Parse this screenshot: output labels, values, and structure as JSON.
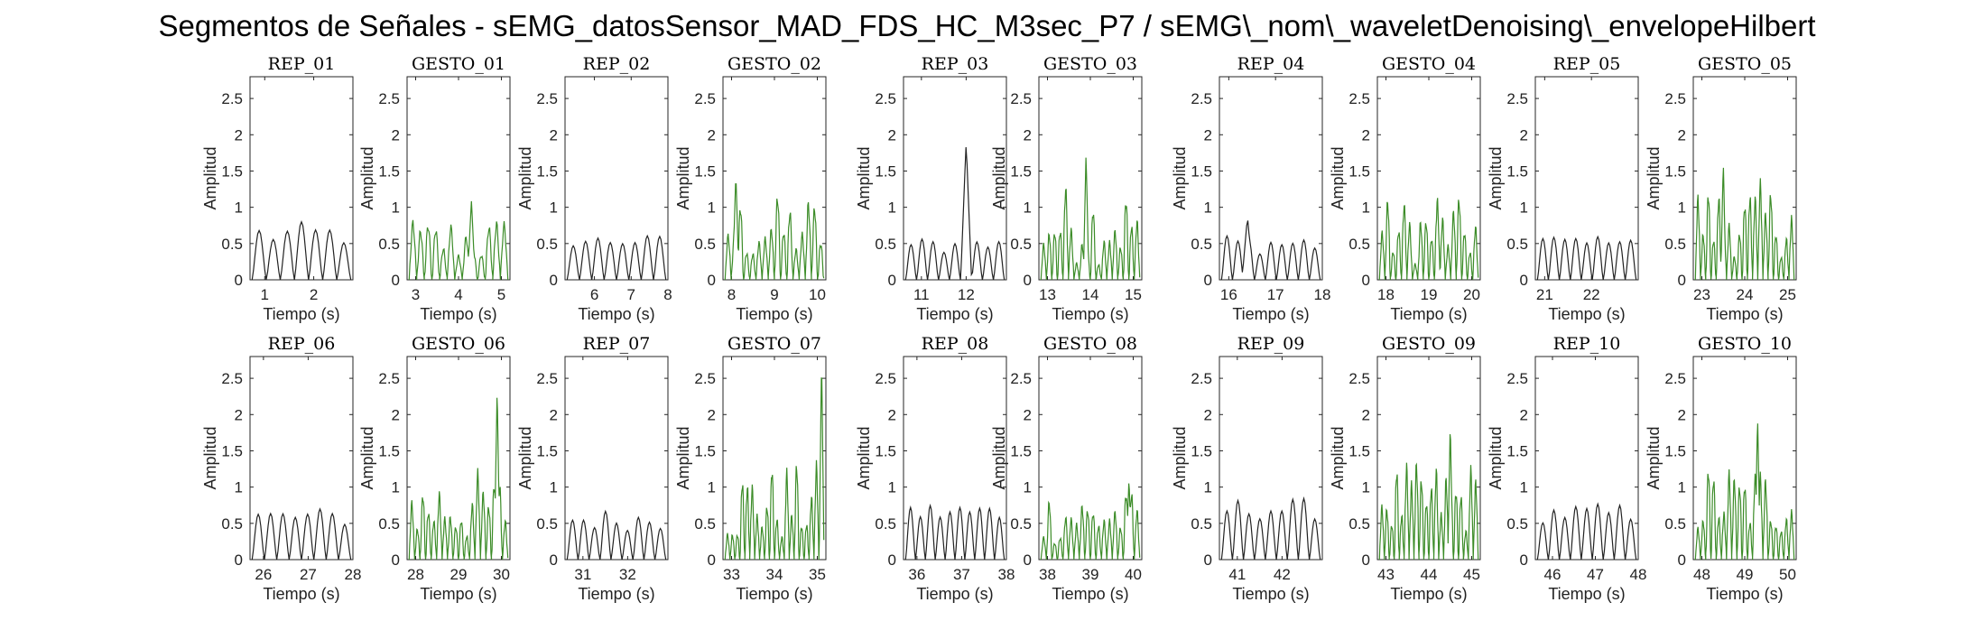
{
  "figure_title": "Segmentos de Señales - sEMG_datosSensor_MAD_FDS_HC_M3sec_P7 / sEMG\\_nom\\_waveletDenoising\\_envelopeHilbert",
  "colors": {
    "rep": "#222222",
    "gesto": "#3c8c28",
    "axes": "#262626"
  },
  "chart_data": {
    "type": "line",
    "layout": {
      "rows": 2,
      "cols": 10
    },
    "ylim": [
      0,
      2.8
    ],
    "yticks": [
      0,
      0.5,
      1,
      1.5,
      2,
      2.5
    ],
    "xlabel": "Tiempo (s)",
    "ylabel": "Amplitud",
    "panels": [
      {
        "title": "REP_01",
        "kind": "rep",
        "xlim": [
          0.7,
          2.8
        ],
        "xticks": [
          1,
          2
        ],
        "bumps": 7,
        "amp": [
          0.45,
          0.8
        ],
        "peak": null
      },
      {
        "title": "GESTO_01",
        "kind": "gesto",
        "xlim": [
          2.8,
          5.2
        ],
        "xticks": [
          3,
          4,
          5
        ],
        "bumps": 13,
        "amp": [
          0.2,
          0.85
        ],
        "peak": [
          4.3,
          1.1
        ]
      },
      {
        "title": "REP_02",
        "kind": "rep",
        "xlim": [
          5.2,
          8.0
        ],
        "xticks": [
          6,
          7,
          8
        ],
        "bumps": 8,
        "amp": [
          0.45,
          0.62
        ],
        "peak": null
      },
      {
        "title": "GESTO_02",
        "kind": "gesto",
        "xlim": [
          7.8,
          10.2
        ],
        "xticks": [
          8,
          9,
          10
        ],
        "bumps": 16,
        "amp": [
          0.2,
          1.15
        ],
        "peak": [
          8.1,
          1.47
        ]
      },
      {
        "title": "REP_03",
        "kind": "rep",
        "xlim": [
          10.6,
          12.9
        ],
        "xticks": [
          11,
          12
        ],
        "bumps": 9,
        "amp": [
          0.35,
          0.6
        ],
        "peak": [
          12.0,
          1.9
        ]
      },
      {
        "title": "GESTO_03",
        "kind": "gesto",
        "xlim": [
          12.8,
          15.2
        ],
        "xticks": [
          13,
          14,
          15
        ],
        "bumps": 18,
        "amp": [
          0.2,
          1.3
        ],
        "peak": [
          13.9,
          1.75
        ]
      },
      {
        "title": "REP_04",
        "kind": "rep",
        "xlim": [
          15.8,
          18.0
        ],
        "xticks": [
          16,
          17,
          18
        ],
        "bumps": 9,
        "amp": [
          0.35,
          0.65
        ],
        "peak": [
          16.4,
          0.87
        ]
      },
      {
        "title": "GESTO_04",
        "kind": "gesto",
        "xlim": [
          17.8,
          20.2
        ],
        "xticks": [
          18,
          19,
          20
        ],
        "bumps": 18,
        "amp": [
          0.2,
          1.1
        ],
        "peak": [
          19.2,
          1.22
        ]
      },
      {
        "title": "REP_05",
        "kind": "rep",
        "xlim": [
          20.8,
          23.0
        ],
        "xticks": [
          21,
          22
        ],
        "bumps": 9,
        "amp": [
          0.5,
          0.6
        ],
        "peak": null
      },
      {
        "title": "GESTO_05",
        "kind": "gesto",
        "xlim": [
          22.8,
          25.2
        ],
        "xticks": [
          23,
          24,
          25
        ],
        "bumps": 19,
        "amp": [
          0.3,
          1.3
        ],
        "peak": [
          23.5,
          1.62
        ]
      },
      {
        "title": "REP_06",
        "kind": "rep",
        "xlim": [
          25.7,
          28.0
        ],
        "xticks": [
          26,
          27,
          28
        ],
        "bumps": 8,
        "amp": [
          0.45,
          0.72
        ],
        "peak": null
      },
      {
        "title": "GESTO_06",
        "kind": "gesto",
        "xlim": [
          27.8,
          30.2
        ],
        "xticks": [
          28,
          29,
          30
        ],
        "bumps": 18,
        "amp": [
          0.2,
          1.2
        ],
        "peak": [
          29.9,
          2.38
        ]
      },
      {
        "title": "REP_07",
        "kind": "rep",
        "xlim": [
          30.6,
          32.9
        ],
        "xticks": [
          31,
          32
        ],
        "bumps": 9,
        "amp": [
          0.4,
          0.7
        ],
        "peak": null
      },
      {
        "title": "GESTO_07",
        "kind": "gesto",
        "xlim": [
          32.8,
          35.2
        ],
        "xticks": [
          33,
          34,
          35
        ],
        "bumps": 20,
        "amp": [
          0.2,
          1.3
        ],
        "peak": [
          35.1,
          2.78
        ]
      },
      {
        "title": "REP_08",
        "kind": "rep",
        "xlim": [
          35.7,
          38.0
        ],
        "xticks": [
          36,
          37,
          38
        ],
        "bumps": 10,
        "amp": [
          0.5,
          0.8
        ],
        "peak": null
      },
      {
        "title": "GESTO_08",
        "kind": "gesto",
        "xlim": [
          37.8,
          40.2
        ],
        "xticks": [
          38,
          39,
          40
        ],
        "bumps": 18,
        "amp": [
          0.2,
          0.95
        ],
        "peak": [
          39.9,
          1.12
        ]
      },
      {
        "title": "REP_09",
        "kind": "rep",
        "xlim": [
          40.6,
          42.9
        ],
        "xticks": [
          41,
          42
        ],
        "bumps": 9,
        "amp": [
          0.55,
          0.85
        ],
        "peak": null
      },
      {
        "title": "GESTO_09",
        "kind": "gesto",
        "xlim": [
          42.8,
          45.2
        ],
        "xticks": [
          43,
          44,
          45
        ],
        "bumps": 20,
        "amp": [
          0.3,
          1.3
        ],
        "peak": [
          44.5,
          1.88
        ]
      },
      {
        "title": "REP_10",
        "kind": "rep",
        "xlim": [
          45.6,
          48.0
        ],
        "xticks": [
          46,
          47,
          48
        ],
        "bumps": 9,
        "amp": [
          0.5,
          0.78
        ],
        "peak": null
      },
      {
        "title": "GESTO_10",
        "kind": "gesto",
        "xlim": [
          47.8,
          50.2
        ],
        "xticks": [
          48,
          49,
          50
        ],
        "bumps": 19,
        "amp": [
          0.3,
          1.3
        ],
        "peak": [
          49.3,
          1.98
        ]
      }
    ]
  }
}
